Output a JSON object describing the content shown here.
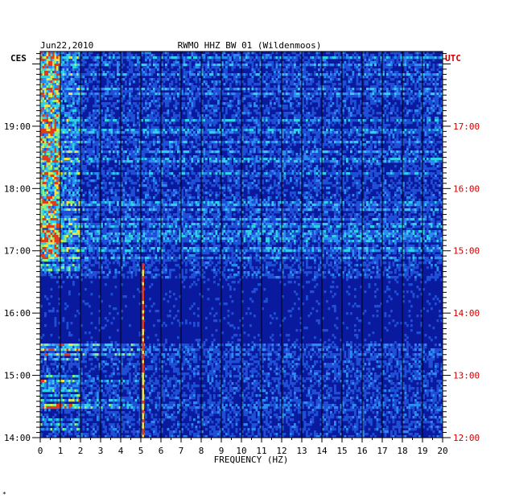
{
  "header": {
    "date": "Jun22,2010",
    "station": "RWMO HHZ BW 01 (Wildenmoos)"
  },
  "left_timezone": "CES",
  "right_timezone": "UTC",
  "footer_mark": "*",
  "colors": {
    "background": "#ffffff",
    "plot_bg": "#0a1a9e",
    "left_labels": "#000000",
    "right_labels": "#cc0000",
    "gridlines": "#000000"
  },
  "chart_data": {
    "type": "heatmap",
    "title": "RWMO HHZ BW 01 (Wildenmoos)",
    "xlabel": "FREQUENCY (HZ)",
    "xlim": [
      0,
      20
    ],
    "x_ticks": [
      0,
      1,
      2,
      3,
      4,
      5,
      6,
      7,
      8,
      9,
      10,
      11,
      12,
      13,
      14,
      15,
      16,
      17,
      18,
      19,
      20
    ],
    "left_axis": {
      "label": "CES",
      "range_hours": [
        14.0,
        20.2
      ],
      "ticks": [
        "19:00",
        "18:00",
        "17:00",
        "16:00",
        "15:00",
        "14:00"
      ]
    },
    "right_axis": {
      "label": "UTC",
      "ticks": [
        "17:00",
        "16:00",
        "15:00",
        "14:00",
        "13:00",
        "12:00"
      ]
    },
    "grid": "vertical lines at each 1 Hz",
    "colormap": "blue (low) - cyan - yellow - red (high)",
    "features": [
      {
        "name": "low-frequency band",
        "freq_range_hz": [
          0,
          1
        ],
        "time_range_ces": [
          "16:50",
          "20:12"
        ]
      },
      {
        "name": "5 Hz line",
        "freq_hz": 5.1,
        "time_range_ces": [
          "14:00",
          "16:50"
        ]
      },
      {
        "name": "quiet period",
        "time_range_ces": [
          "15:30",
          "16:30"
        ]
      }
    ]
  }
}
